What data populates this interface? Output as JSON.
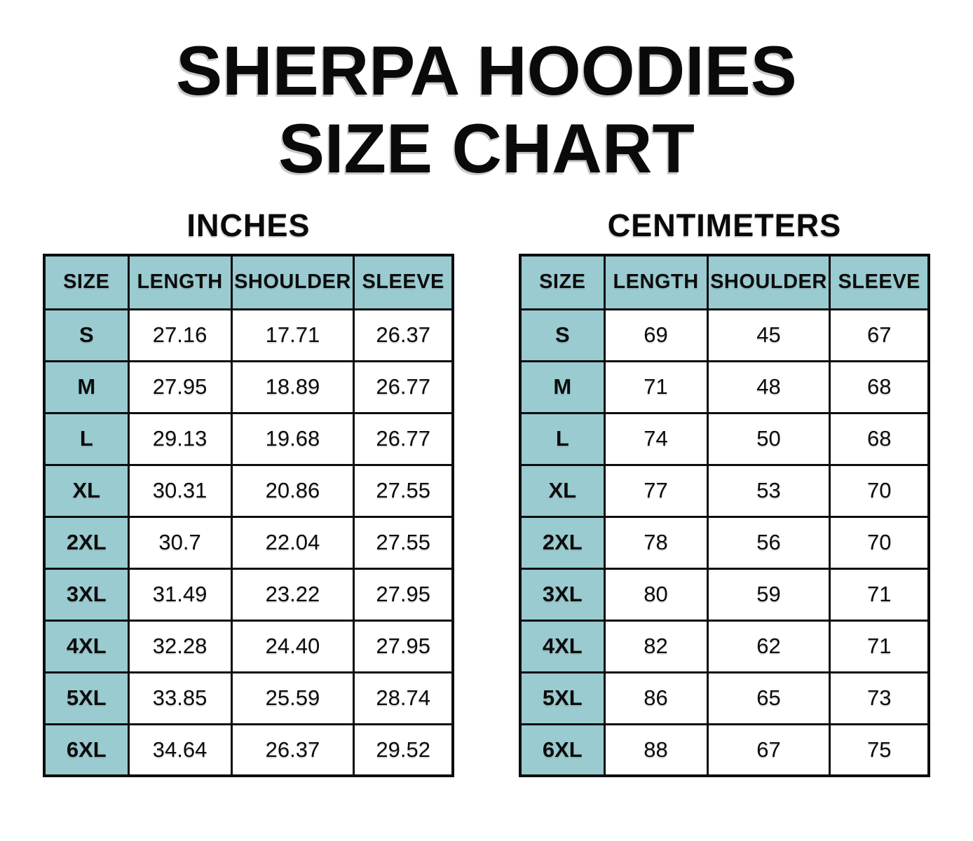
{
  "title": {
    "line1": "SHERPA HOODIES",
    "line2": "SIZE CHART"
  },
  "tables": [
    {
      "unit_label": "INCHES",
      "columns": [
        "SIZE",
        "LENGTH",
        "SHOULDER",
        "SLEEVE"
      ],
      "rows": [
        [
          "S",
          "27.16",
          "17.71",
          "26.37"
        ],
        [
          "M",
          "27.95",
          "18.89",
          "26.77"
        ],
        [
          "L",
          "29.13",
          "19.68",
          "26.77"
        ],
        [
          "XL",
          "30.31",
          "20.86",
          "27.55"
        ],
        [
          "2XL",
          "30.7",
          "22.04",
          "27.55"
        ],
        [
          "3XL",
          "31.49",
          "23.22",
          "27.95"
        ],
        [
          "4XL",
          "32.28",
          "24.40",
          "27.95"
        ],
        [
          "5XL",
          "33.85",
          "25.59",
          "28.74"
        ],
        [
          "6XL",
          "34.64",
          "26.37",
          "29.52"
        ]
      ]
    },
    {
      "unit_label": "CENTIMETERS",
      "columns": [
        "SIZE",
        "LENGTH",
        "SHOULDER",
        "SLEEVE"
      ],
      "rows": [
        [
          "S",
          "69",
          "45",
          "67"
        ],
        [
          "M",
          "71",
          "48",
          "68"
        ],
        [
          "L",
          "74",
          "50",
          "68"
        ],
        [
          "XL",
          "77",
          "53",
          "70"
        ],
        [
          "2XL",
          "78",
          "56",
          "70"
        ],
        [
          "3XL",
          "80",
          "59",
          "71"
        ],
        [
          "4XL",
          "82",
          "62",
          "71"
        ],
        [
          "5XL",
          "86",
          "65",
          "73"
        ],
        [
          "6XL",
          "88",
          "67",
          "75"
        ]
      ]
    }
  ],
  "colors": {
    "header_fill": "#99cbd0",
    "border": "#0d0d0d",
    "text": "#0c0c0c",
    "background": "#ffffff"
  },
  "chart_data": [
    {
      "type": "table",
      "title": "Sherpa Hoodies Size Chart - Inches",
      "columns": [
        "SIZE",
        "LENGTH",
        "SHOULDER",
        "SLEEVE"
      ],
      "rows": [
        {
          "size": "S",
          "length": 27.16,
          "shoulder": 17.71,
          "sleeve": 26.37
        },
        {
          "size": "M",
          "length": 27.95,
          "shoulder": 18.89,
          "sleeve": 26.77
        },
        {
          "size": "L",
          "length": 29.13,
          "shoulder": 19.68,
          "sleeve": 26.77
        },
        {
          "size": "XL",
          "length": 30.31,
          "shoulder": 20.86,
          "sleeve": 27.55
        },
        {
          "size": "2XL",
          "length": 30.7,
          "shoulder": 22.04,
          "sleeve": 27.55
        },
        {
          "size": "3XL",
          "length": 31.49,
          "shoulder": 23.22,
          "sleeve": 27.95
        },
        {
          "size": "4XL",
          "length": 32.28,
          "shoulder": 24.4,
          "sleeve": 27.95
        },
        {
          "size": "5XL",
          "length": 33.85,
          "shoulder": 25.59,
          "sleeve": 28.74
        },
        {
          "size": "6XL",
          "length": 34.64,
          "shoulder": 26.37,
          "sleeve": 29.52
        }
      ]
    },
    {
      "type": "table",
      "title": "Sherpa Hoodies Size Chart - Centimeters",
      "columns": [
        "SIZE",
        "LENGTH",
        "SHOULDER",
        "SLEEVE"
      ],
      "rows": [
        {
          "size": "S",
          "length": 69,
          "shoulder": 45,
          "sleeve": 67
        },
        {
          "size": "M",
          "length": 71,
          "shoulder": 48,
          "sleeve": 68
        },
        {
          "size": "L",
          "length": 74,
          "shoulder": 50,
          "sleeve": 68
        },
        {
          "size": "XL",
          "length": 77,
          "shoulder": 53,
          "sleeve": 70
        },
        {
          "size": "2XL",
          "length": 78,
          "shoulder": 56,
          "sleeve": 70
        },
        {
          "size": "3XL",
          "length": 80,
          "shoulder": 59,
          "sleeve": 71
        },
        {
          "size": "4XL",
          "length": 82,
          "shoulder": 62,
          "sleeve": 71
        },
        {
          "size": "5XL",
          "length": 86,
          "shoulder": 65,
          "sleeve": 73
        },
        {
          "size": "6XL",
          "length": 88,
          "shoulder": 67,
          "sleeve": 75
        }
      ]
    }
  ]
}
